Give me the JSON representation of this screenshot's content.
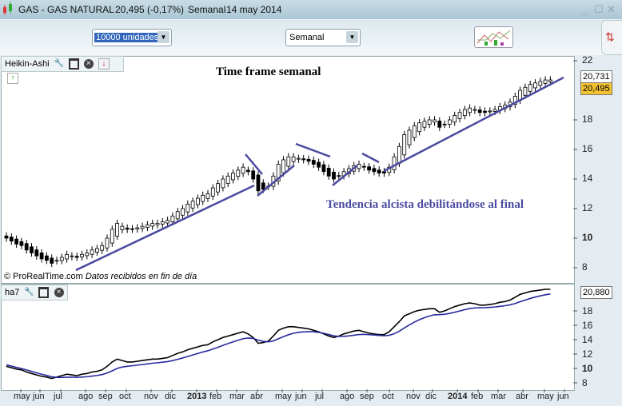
{
  "window": {
    "title": "GAS - GAS NATURAL",
    "price": "20,495 (-0,17%)",
    "period": "Semanal",
    "date": "14 may 2014"
  },
  "toolbar": {
    "units_select": "10000 unidades",
    "timeframe_select": "Semanal",
    "indicators_icon": "chart-indicators-icon"
  },
  "main_panel": {
    "label": "Heikin-Ashi",
    "annotation_title": "Time frame semanal",
    "annotation_trend": "Tendencia alcista debilitándose al final",
    "copyright": "© ProRealTime.com",
    "data_note": "Datos recibidos en fin de día",
    "last_tag": "20,731",
    "price_tag": "20,495",
    "price_tag_color": "#f2c230",
    "trendline_color": "#4a4aa0"
  },
  "lower_panel": {
    "label": "ha7",
    "value_tag": "20,880"
  },
  "chart_data": [
    {
      "type": "candlestick",
      "style": "heikin-ashi",
      "interval": "weekly",
      "ylim": [
        8,
        22
      ],
      "y_ticks": [
        "22",
        "18",
        "16",
        "14",
        "12",
        "10",
        "8"
      ],
      "close": [
        10.0,
        9.8,
        9.6,
        9.5,
        9.2,
        9.0,
        8.8,
        8.6,
        8.5,
        8.3,
        8.5,
        8.7,
        8.9,
        8.8,
        8.7,
        8.9,
        9.0,
        9.2,
        9.3,
        9.5,
        10.0,
        10.6,
        11.0,
        10.8,
        10.6,
        10.6,
        10.7,
        10.8,
        10.9,
        11.0,
        11.0,
        11.1,
        11.2,
        11.5,
        11.8,
        12.0,
        12.3,
        12.5,
        12.7,
        12.9,
        13.0,
        13.4,
        13.7,
        14.0,
        14.2,
        14.4,
        14.6,
        14.8,
        14.5,
        14.0,
        13.2,
        13.3,
        13.5,
        14.2,
        15.0,
        15.3,
        15.5,
        15.5,
        15.4,
        15.3,
        15.2,
        15.0,
        14.8,
        14.5,
        14.2,
        14.0,
        14.2,
        14.5,
        14.7,
        14.9,
        15.0,
        14.8,
        14.6,
        14.5,
        14.4,
        14.4,
        14.8,
        15.5,
        16.2,
        17.0,
        17.3,
        17.6,
        17.8,
        17.9,
        18.0,
        18.0,
        17.5,
        17.7,
        18.0,
        18.3,
        18.5,
        18.7,
        18.8,
        18.7,
        18.5,
        18.5,
        18.6,
        18.7,
        18.9,
        19.0,
        19.2,
        19.6,
        20.0,
        20.2,
        20.4,
        20.5,
        20.6,
        20.7,
        20.7
      ]
    },
    {
      "type": "line",
      "name": "ha7",
      "ylim": [
        8,
        20
      ],
      "y_ticks": [
        "18",
        "16",
        "14",
        "12",
        "10",
        "8"
      ]
    }
  ],
  "x_axis": [
    "may",
    "jun",
    "jul",
    "ago",
    "sep",
    "oct",
    "nov",
    "dic",
    "2013",
    "feb",
    "mar",
    "abr",
    "may",
    "jun",
    "jul",
    "ago",
    "sep",
    "oct",
    "nov",
    "dic",
    "2014",
    "feb",
    "mar",
    "abr",
    "may",
    "jun"
  ]
}
